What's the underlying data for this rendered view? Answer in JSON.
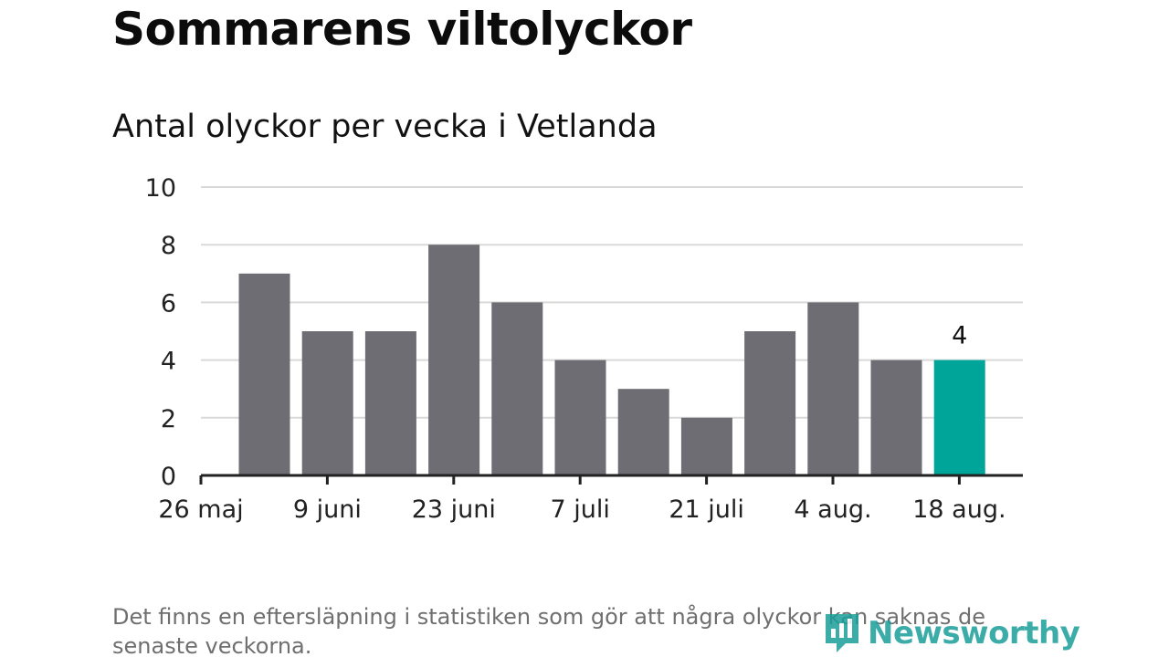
{
  "title": "Sommarens viltolyckor",
  "subtitle": "Antal olyckor per vecka i Vetlanda",
  "footnote": "Det finns en eftersläpning i statistiken som gör att några olyckor kan saknas de senaste veckorna.",
  "logo_text": "Newsworthy",
  "colors": {
    "bar": "#6e6d73",
    "highlight": "#00a59a",
    "grid": "#d9d9d9",
    "axis": "#222222",
    "logo": "#1b9e9a"
  },
  "chart_data": {
    "type": "bar",
    "title": "Sommarens viltolyckor",
    "subtitle": "Antal olyckor per vecka i Vetlanda",
    "xlabel": "",
    "ylabel": "",
    "ylim": [
      0,
      10
    ],
    "yticks": [
      0,
      2,
      4,
      6,
      8,
      10
    ],
    "grid": true,
    "x_tick_labels": [
      "26 maj",
      "9 juni",
      "23 juni",
      "7 juli",
      "21 juli",
      "4 aug.",
      "18 aug."
    ],
    "values": [
      7,
      5,
      5,
      8,
      6,
      4,
      3,
      2,
      5,
      6,
      4,
      4
    ],
    "highlight_index": 11,
    "data_labels": [
      {
        "index": 11,
        "text": "4"
      }
    ]
  }
}
